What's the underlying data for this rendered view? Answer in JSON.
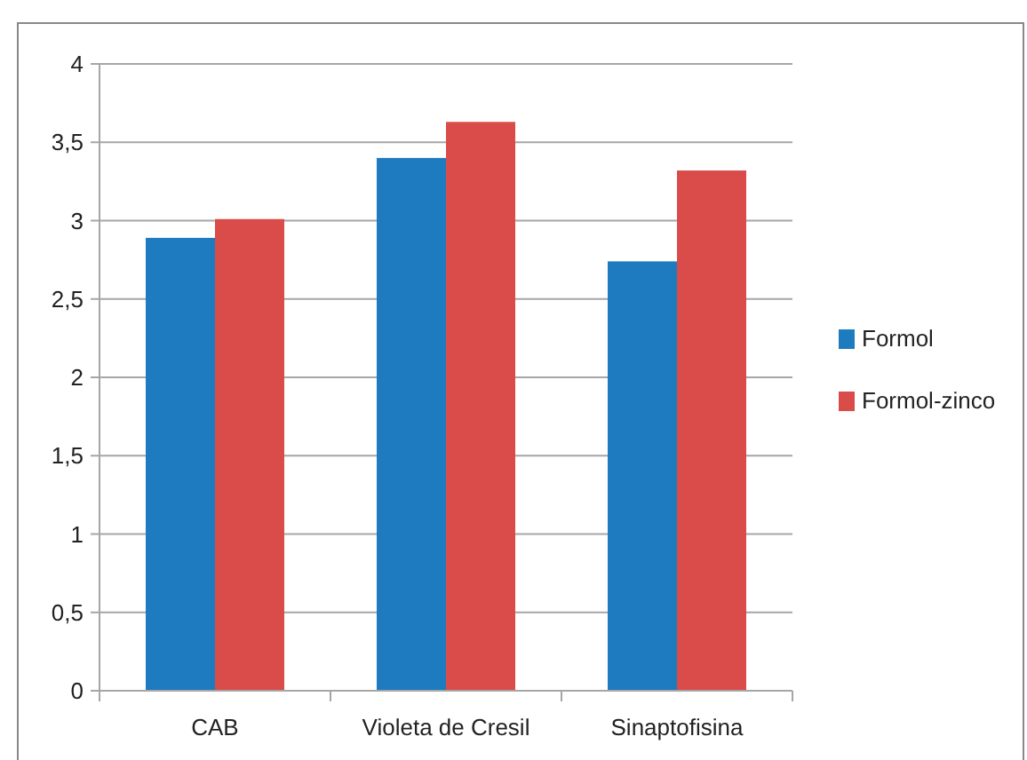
{
  "chart_data": {
    "type": "bar",
    "categories": [
      "CAB",
      "Violeta de Cresil",
      "Sinaptofisina"
    ],
    "series": [
      {
        "name": "Formol",
        "color": "#1f7bbf",
        "values": [
          2.89,
          3.4,
          2.74
        ]
      },
      {
        "name": "Formol-zinco",
        "color": "#d94c4a",
        "values": [
          3.01,
          3.63,
          3.32
        ]
      }
    ],
    "ylim": [
      0,
      4
    ],
    "yticks": [
      0,
      {
        "value": 0.5,
        "label": "0,5"
      },
      1,
      {
        "value": 1.5,
        "label": "1,5"
      },
      2,
      {
        "value": 2.5,
        "label": "2,5"
      },
      3,
      {
        "value": 3.5,
        "label": "3,5"
      },
      4
    ],
    "grid": "y",
    "legend": "right"
  }
}
